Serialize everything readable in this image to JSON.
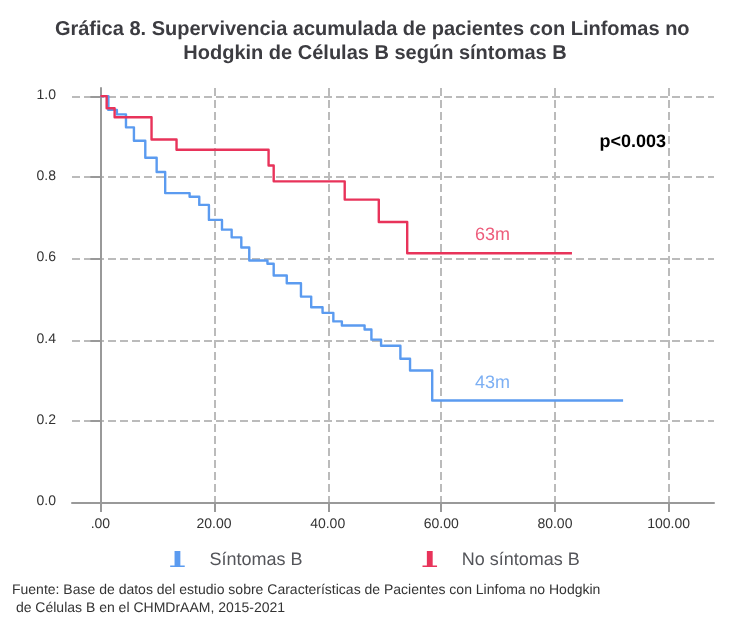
{
  "chart_data": {
    "type": "step",
    "title": "Gráfica 8. Supervivencia acumulada de pacientes con Linfomas no Hodgkin de Células B según síntomas B",
    "series": [
      {
        "name": "Síntomas B",
        "color": "#5b9bf0",
        "x": [
          0,
          1.4,
          2.9,
          4.5,
          5.9,
          7.9,
          9.9,
          11.4,
          15.7,
          17.4,
          19.1,
          21.4,
          23.1,
          24.8,
          26.2,
          29.4,
          30.5,
          32.8,
          35.3,
          37.1,
          39.1,
          41,
          42.5,
          46.5,
          47.7,
          49.4,
          52.8,
          54.5,
          58.4,
          92
        ],
        "values": [
          1,
          0.966,
          0.955,
          0.923,
          0.89,
          0.848,
          0.813,
          0.761,
          0.752,
          0.732,
          0.695,
          0.671,
          0.652,
          0.627,
          0.595,
          0.587,
          0.558,
          0.539,
          0.506,
          0.48,
          0.466,
          0.445,
          0.435,
          0.425,
          0.4,
          0.385,
          0.353,
          0.324,
          0.25,
          0.25
        ]
      },
      {
        "name": "No síntomas B",
        "color": "#e8335a",
        "x": [
          0,
          1.1,
          2.5,
          9,
          13.4,
          29.6,
          30.5,
          43,
          49,
          54,
          83
        ],
        "values": [
          1,
          0.97,
          0.948,
          0.893,
          0.868,
          0.829,
          0.79,
          0.745,
          0.69,
          0.613,
          0.613
        ]
      }
    ],
    "xlim": [
      -5,
      108
    ],
    "xticks": [
      {
        "value": 0,
        "label": ".00"
      },
      {
        "value": 20,
        "label": "20.00"
      },
      {
        "value": 40,
        "label": "40.00"
      },
      {
        "value": 60,
        "label": "60.00"
      },
      {
        "value": 80,
        "label": "80.00"
      },
      {
        "value": 100,
        "label": "100.00"
      }
    ],
    "ylim": [
      0,
      1.02
    ],
    "yticks": [
      {
        "value": 0,
        "label": "0.0"
      },
      {
        "value": 0.2,
        "label": "0.2"
      },
      {
        "value": 0.4,
        "label": "0.4"
      },
      {
        "value": 0.6,
        "label": "0.6"
      },
      {
        "value": 0.8,
        "label": "0.8"
      },
      {
        "value": 1,
        "label": "1.0"
      }
    ],
    "grid": true,
    "legend": "bottom",
    "line_style": "solid",
    "marker": "none",
    "annotations": [
      "p<0.003",
      {
        "text": "63m",
        "x": 69,
        "y": 0.613
      },
      {
        "text": "43m",
        "x": 69,
        "y": 0.25
      },
      "Fuente: Base de datos del estudio sobre Características de Pacientes con Linfoma no Hodgkin de Células B en el CHMDrAAM, 2015-2021"
    ]
  }
}
